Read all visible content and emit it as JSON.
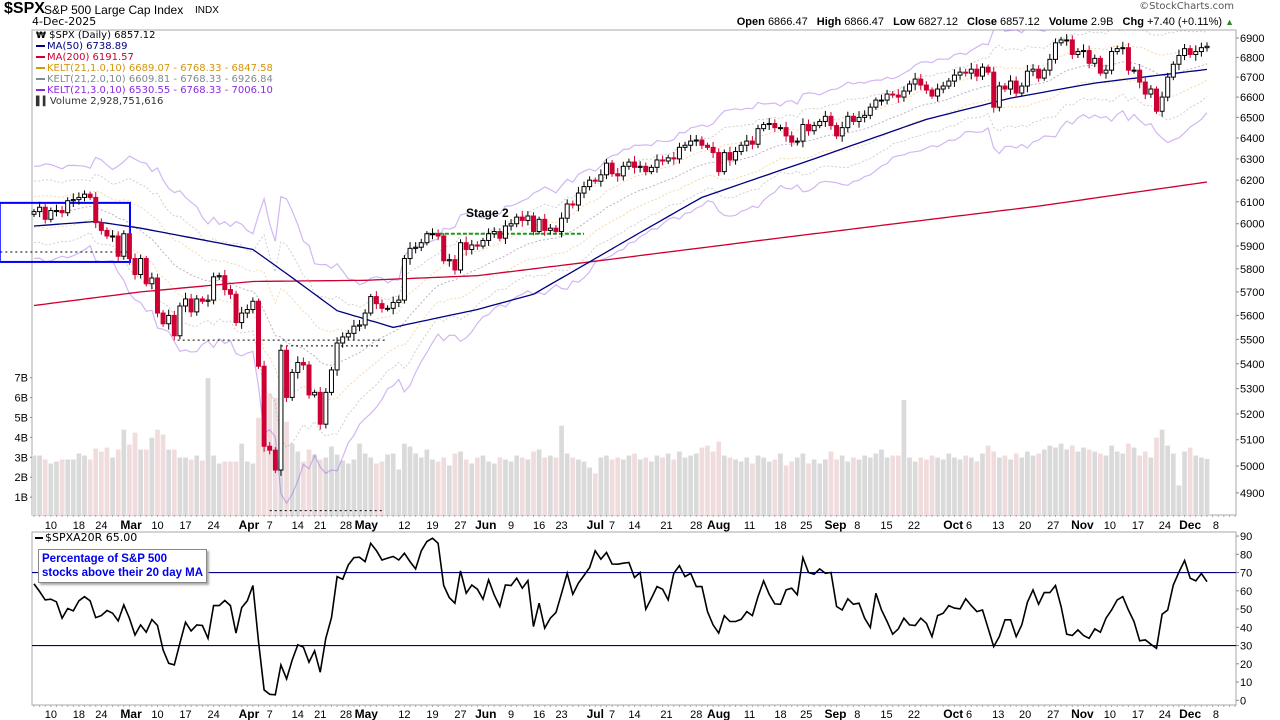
{
  "header": {
    "symbol": "$SPX",
    "name": "S&P 500 Large Cap Index",
    "exchange": "INDX",
    "date": "4-Dec-2025",
    "copyright": "©StockCharts.com",
    "open_label": "Open",
    "open": "6866.47",
    "high_label": "High",
    "high": "6866.47",
    "low_label": "Low",
    "low": "6827.12",
    "close_label": "Close",
    "close": "6857.12",
    "volume_label": "Volume",
    "volume": "2.9B",
    "chg_label": "Chg",
    "chg": "+7.40 (+0.11%)",
    "chg_arrow": "▲"
  },
  "legend": {
    "price": "$SPX (Daily) 6857.12",
    "ma50": "MA(50) 6738.89",
    "ma200": "MA(200) 6191.57",
    "kelt1": "KELT(21,1.0,10) 6689.07 - 6768.33 - 6847.58",
    "kelt2": "KELT(21,2.0,10) 6609.81 - 6768.33 - 6926.84",
    "kelt3": "KELT(21,3.0,10) 6530.55 - 6768.33 - 7006.10",
    "volume": "Volume 2,928,751,616"
  },
  "indicator": {
    "legend": "$SPXA20R 65.00",
    "note_line1": "Percentage of S&P 500",
    "note_line2": "stocks above their 20 day MA"
  },
  "colors": {
    "up": "#000000",
    "down": "#cc0033",
    "ma50": "#000080",
    "ma200": "#cc0033",
    "kelt1": "#e0a030",
    "kelt2": "#8a8a8a",
    "kelt3": "#9b5de5",
    "annotation_box": "#0000ff",
    "stage_line": "#1a9a1a"
  },
  "chart_data": [
    {
      "type": "candlestick",
      "title": "$SPX S&P 500 Large Cap Index",
      "scale": "log",
      "ylim": [
        4900,
        6900
      ],
      "y_ticks": [
        6900,
        6800,
        6700,
        6600,
        6500,
        6400,
        6300,
        6200,
        6100,
        6000,
        5900,
        5800,
        5700,
        5600,
        5500,
        5400,
        5300,
        5200,
        5100,
        5000,
        4900
      ],
      "x_ticks": [
        {
          "label": "10",
          "idx": 3
        },
        {
          "label": "18",
          "idx": 8
        },
        {
          "label": "24",
          "idx": 12
        },
        {
          "label": "Mar",
          "idx": 17.3,
          "month": true
        },
        {
          "label": "10",
          "idx": 22
        },
        {
          "label": "17",
          "idx": 27
        },
        {
          "label": "24",
          "idx": 32
        },
        {
          "label": "Apr",
          "idx": 38.3,
          "month": true
        },
        {
          "label": "7",
          "idx": 42
        },
        {
          "label": "14",
          "idx": 47
        },
        {
          "label": "21",
          "idx": 51
        },
        {
          "label": "28",
          "idx": 55.6
        },
        {
          "label": "May",
          "idx": 59.2,
          "month": true
        },
        {
          "label": "12",
          "idx": 66
        },
        {
          "label": "19",
          "idx": 71
        },
        {
          "label": "27",
          "idx": 76
        },
        {
          "label": "Jun",
          "idx": 80.5,
          "month": true
        },
        {
          "label": "9",
          "idx": 85
        },
        {
          "label": "16",
          "idx": 90
        },
        {
          "label": "23",
          "idx": 94
        },
        {
          "label": "Jul",
          "idx": 100,
          "month": true
        },
        {
          "label": "7",
          "idx": 103
        },
        {
          "label": "14",
          "idx": 107
        },
        {
          "label": "21",
          "idx": 112.7
        },
        {
          "label": "28",
          "idx": 118
        },
        {
          "label": "Aug",
          "idx": 122,
          "month": true
        },
        {
          "label": "11",
          "idx": 127.5
        },
        {
          "label": "18",
          "idx": 133
        },
        {
          "label": "25",
          "idx": 137.6
        },
        {
          "label": "Sep",
          "idx": 142.8,
          "month": true
        },
        {
          "label": "8",
          "idx": 146.7
        },
        {
          "label": "15",
          "idx": 151.9
        },
        {
          "label": "22",
          "idx": 156.8
        },
        {
          "label": "Oct",
          "idx": 163.8,
          "month": true
        },
        {
          "label": "6",
          "idx": 166.6
        },
        {
          "label": "13",
          "idx": 171.8
        },
        {
          "label": "20",
          "idx": 176.6
        },
        {
          "label": "27",
          "idx": 181.6
        },
        {
          "label": "Nov",
          "idx": 186.8,
          "month": true
        },
        {
          "label": "10",
          "idx": 191.7
        },
        {
          "label": "17",
          "idx": 196.7
        },
        {
          "label": "24",
          "idx": 201.5
        },
        {
          "label": "Dec",
          "idx": 206,
          "month": true
        },
        {
          "label": "8",
          "idx": 210.6
        }
      ],
      "closes": [
        6055,
        6075,
        6020,
        6060,
        6060,
        6050,
        6105,
        6110,
        6120,
        6135,
        6120,
        6005,
        5970,
        5945,
        5945,
        5855,
        5955,
        5845,
        5775,
        5845,
        5735,
        5760,
        5610,
        5565,
        5600,
        5515,
        5640,
        5670,
        5615,
        5670,
        5660,
        5665,
        5765,
        5770,
        5710,
        5690,
        5570,
        5610,
        5625,
        5660,
        5390,
        5075,
        5060,
        4985,
        5455,
        5265,
        5365,
        5405,
        5395,
        5275,
        5285,
        5160,
        5285,
        5375,
        5485,
        5510,
        5525,
        5555,
        5560,
        5610,
        5680,
        5650,
        5630,
        5630,
        5655,
        5665,
        5845,
        5890,
        5895,
        5915,
        5955,
        5955,
        5945,
        5835,
        5840,
        5795,
        5915,
        5885,
        5905,
        5900,
        5925,
        5955,
        5965,
        5935,
        5990,
        6000,
        6030,
        6015,
        6035,
        5965,
        6020,
        5970,
        5980,
        5965,
        6025,
        6090,
        6085,
        6140,
        6170,
        6200,
        6195,
        6225,
        6280,
        6230,
        6220,
        6265,
        6285,
        6260,
        6265,
        6240,
        6260,
        6295,
        6290,
        6305,
        6300,
        6355,
        6365,
        6385,
        6390,
        6365,
        6355,
        6330,
        6240,
        6330,
        6295,
        6335,
        6365,
        6385,
        6370,
        6445,
        6465,
        6470,
        6450,
        6450,
        6410,
        6380,
        6385,
        6465,
        6435,
        6460,
        6480,
        6505,
        6460,
        6410,
        6450,
        6505,
        6480,
        6500,
        6510,
        6550,
        6585,
        6585,
        6615,
        6610,
        6600,
        6630,
        6665,
        6690,
        6660,
        6635,
        6605,
        6640,
        6655,
        6680,
        6710,
        6725,
        6720,
        6740,
        6705,
        6750,
        6725,
        6550,
        6655,
        6640,
        6680,
        6620,
        6655,
        6730,
        6740,
        6695,
        6735,
        6790,
        6875,
        6890,
        6890,
        6815,
        6830,
        6835,
        6770,
        6795,
        6720,
        6735,
        6830,
        6845,
        6850,
        6735,
        6735,
        6675,
        6615,
        6640,
        6530,
        6600,
        6700,
        6765,
        6810,
        6845,
        6815,
        6830,
        6850,
        6857.12
      ],
      "volume_billions": [
        3.1,
        3.1,
        2.9,
        2.7,
        2.8,
        2.9,
        2.9,
        2.9,
        3.2,
        3.1,
        2.9,
        3.45,
        3.3,
        3.5,
        3.0,
        3.4,
        4.4,
        3.65,
        4.25,
        3.4,
        3.4,
        4.0,
        4.4,
        4.15,
        3.4,
        3.4,
        3.0,
        3.0,
        2.9,
        3.1,
        2.85,
        7.0,
        3.1,
        2.7,
        2.8,
        2.8,
        2.8,
        3.7,
        2.8,
        2.7,
        5.0,
        6.2,
        6.2,
        6.0,
        6.7,
        4.8,
        3.7,
        3.3,
        2.8,
        3.4,
        3.15,
        2.9,
        3.0,
        3.55,
        3.15,
        2.85,
        2.7,
        2.9,
        3.7,
        3.2,
        3.0,
        2.7,
        2.8,
        3.15,
        3.2,
        2.4,
        3.7,
        3.55,
        3.2,
        3.0,
        3.4,
        2.9,
        2.8,
        3.0,
        2.6,
        3.2,
        3.3,
        2.9,
        2.7,
        3.0,
        3.1,
        2.8,
        2.7,
        3.0,
        2.9,
        2.8,
        3.1,
        3.0,
        2.9,
        3.3,
        3.4,
        3.0,
        3.1,
        3.0,
        4.6,
        3.2,
        3.0,
        2.9,
        2.8,
        2.5,
        2.2,
        3.0,
        3.1,
        2.9,
        3.0,
        2.9,
        3.1,
        3.2,
        2.9,
        3.0,
        2.8,
        3.1,
        3.0,
        3.2,
        2.9,
        3.3,
        3.0,
        3.1,
        3.2,
        3.5,
        3.6,
        3.3,
        3.8,
        3.1,
        3.0,
        2.9,
        2.8,
        3.0,
        2.7,
        3.1,
        3.0,
        2.8,
        2.9,
        3.2,
        2.6,
        2.8,
        3.0,
        3.2,
        2.7,
        2.9,
        2.7,
        2.9,
        3.3,
        2.9,
        3.1,
        2.8,
        3.0,
        2.9,
        3.1,
        3.0,
        3.2,
        3.4,
        3.0,
        3.1,
        3.1,
        5.9,
        3.0,
        2.8,
        3.0,
        2.9,
        3.1,
        3.0,
        2.9,
        3.2,
        3.0,
        2.9,
        3.1,
        3.0,
        2.8,
        3.2,
        3.6,
        3.3,
        3.0,
        3.1,
        2.9,
        3.2,
        3.0,
        3.3,
        3.1,
        3.2,
        3.4,
        3.6,
        3.5,
        3.7,
        3.4,
        3.6,
        3.3,
        3.5,
        3.4,
        3.3,
        3.2,
        3.1,
        3.6,
        3.3,
        3.2,
        3.7,
        3.5,
        3.1,
        3.3,
        3.0,
        4.0,
        4.4,
        3.6,
        3.2,
        1.6,
        3.3,
        3.5,
        3.1,
        3.0,
        2.93
      ],
      "volume_ticks": [
        {
          "label": "7B",
          "v": 7
        },
        {
          "label": "6B",
          "v": 6
        },
        {
          "label": "5B",
          "v": 5
        },
        {
          "label": "4B",
          "v": 4
        },
        {
          "label": "3B",
          "v": 3
        },
        {
          "label": "2B",
          "v": 2
        },
        {
          "label": "1B",
          "v": 1
        }
      ],
      "ma50_anchors": [
        [
          0,
          5990
        ],
        [
          11,
          6010
        ],
        [
          19,
          5980
        ],
        [
          39,
          5885
        ],
        [
          54,
          5620
        ],
        [
          64,
          5550
        ],
        [
          79,
          5625
        ],
        [
          89,
          5690
        ],
        [
          99,
          5830
        ],
        [
          119,
          6120
        ],
        [
          139,
          6300
        ],
        [
          159,
          6490
        ],
        [
          174,
          6595
        ],
        [
          189,
          6670
        ],
        [
          209,
          6738.89
        ]
      ],
      "ma200_anchors": [
        [
          0,
          5642
        ],
        [
          19,
          5700
        ],
        [
          39,
          5745
        ],
        [
          59,
          5750
        ],
        [
          79,
          5770
        ],
        [
          99,
          5830
        ],
        [
          139,
          5955
        ],
        [
          179,
          6080
        ],
        [
          209,
          6191.57
        ]
      ],
      "keltner": {
        "ema": 21,
        "atr": 10,
        "multipliers": [
          1.0,
          2.0,
          3.0
        ]
      },
      "annotations": {
        "stage_label": "Stage 2",
        "stage_level": {
          "price": 5955,
          "from": 70,
          "to": 98
        },
        "support_levels": [
          {
            "price": 5874,
            "from": -6,
            "to": 17
          },
          {
            "price": 5497,
            "from": 25.6,
            "to": 62.8
          },
          {
            "price": 5473,
            "from": 44,
            "to": 61.6
          },
          {
            "price": 4835,
            "from": 42,
            "to": 62
          }
        ],
        "box": {
          "price_top": 6095,
          "price_bottom": 5830,
          "from": -6.1,
          "to": 17.1
        }
      }
    },
    {
      "type": "line",
      "title": "$SPXA20R",
      "ylim": [
        0,
        90
      ],
      "y_ticks": [
        90,
        80,
        70,
        60,
        50,
        40,
        30,
        20,
        10,
        0
      ],
      "reference_lines": [
        70,
        30
      ],
      "values": [
        63.8,
        59.6,
        55,
        55.4,
        54,
        45,
        50.3,
        49,
        54.5,
        56.8,
        54.5,
        45.3,
        46.4,
        49.2,
        47.7,
        43.5,
        52.3,
        45,
        35.8,
        41.3,
        37.3,
        44.2,
        41,
        27.6,
        20.3,
        19.4,
        31.3,
        42.8,
        38,
        41.3,
        41,
        34,
        51.9,
        51.9,
        54.7,
        51.9,
        36.8,
        50.8,
        54.5,
        62.9,
        32.2,
        5.7,
        3.3,
        3,
        19.4,
        11.7,
        22.1,
        30.4,
        29.1,
        20.9,
        27.1,
        15.4,
        34,
        45.3,
        67.8,
        66.3,
        74.2,
        78.2,
        78.4,
        76,
        86,
        82,
        76.9,
        77.9,
        78.8,
        76.9,
        80.6,
        76,
        72,
        81.9,
        87,
        88.8,
        86,
        62.9,
        56.3,
        53.2,
        70.9,
        58.7,
        63.2,
        60.9,
        55.4,
        66,
        57.8,
        51.4,
        63.2,
        62.9,
        66.9,
        61.4,
        65.6,
        40.4,
        53.2,
        39.5,
        45,
        48.1,
        58.7,
        69.6,
        58.1,
        64.2,
        68.4,
        72.7,
        81.9,
        77.3,
        81,
        74.7,
        74.6,
        75.1,
        75.5,
        67.3,
        70,
        49.9,
        55.9,
        62.3,
        60.9,
        55,
        69.6,
        73.8,
        67.8,
        69.6,
        62.3,
        62.3,
        48.6,
        41.3,
        36.8,
        46.4,
        43.2,
        43.2,
        44.4,
        48.6,
        46.4,
        56.8,
        65.4,
        58.1,
        52.8,
        52.6,
        60.5,
        61.4,
        57.8,
        78.2,
        70,
        69.1,
        72,
        69.6,
        70,
        51.4,
        49.5,
        55.6,
        52.6,
        53.2,
        45,
        39.9,
        58.7,
        49.5,
        43.2,
        36.2,
        39.1,
        45,
        41.3,
        41,
        45,
        42.2,
        34.9,
        46.4,
        47.7,
        51.9,
        50.5,
        50.1,
        55.6,
        51.9,
        48.6,
        49.5,
        39.5,
        29.4,
        34.9,
        44.1,
        44.1,
        34.9,
        41.3,
        53.7,
        60.5,
        52.6,
        59,
        59,
        62.9,
        51.4,
        36.2,
        35.5,
        38.6,
        35.5,
        34,
        39.1,
        37.3,
        45,
        49.5,
        55,
        56.8,
        49.5,
        43.2,
        32.6,
        33.1,
        30.7,
        28.5,
        47.2,
        49.5,
        63.2,
        70.2,
        76.6,
        66.9,
        65.4,
        69.5,
        65
      ]
    }
  ]
}
